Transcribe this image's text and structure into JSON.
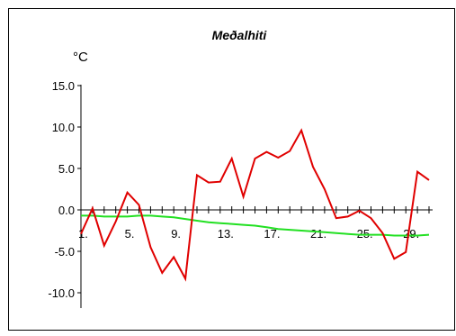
{
  "chart_data": {
    "type": "line",
    "title": "Meðalhiti",
    "ylabel": "°C",
    "xlabel": "",
    "ylim": [
      -11.5,
      15.0
    ],
    "y_ticks": [
      15.0,
      10.0,
      5.0,
      0.0,
      -5.0,
      -10.0
    ],
    "y_tick_labels": [
      "15.0",
      "10.0",
      "5.0",
      "0.0",
      "-5.0",
      "-10.0"
    ],
    "x_range": [
      1,
      31
    ],
    "x_tick_labels": [
      {
        "x": 1,
        "label": "1."
      },
      {
        "x": 5,
        "label": "5."
      },
      {
        "x": 9,
        "label": "9."
      },
      {
        "x": 13,
        "label": "13."
      },
      {
        "x": 17,
        "label": "17."
      },
      {
        "x": 21,
        "label": "21."
      },
      {
        "x": 25,
        "label": "25."
      },
      {
        "x": 29,
        "label": "29."
      }
    ],
    "grid": false,
    "x": [
      1,
      2,
      3,
      4,
      5,
      6,
      7,
      8,
      9,
      10,
      11,
      12,
      13,
      14,
      15,
      16,
      17,
      18,
      19,
      20,
      21,
      22,
      23,
      24,
      25,
      26,
      27,
      28,
      29,
      30,
      31
    ],
    "series": [
      {
        "color": "#e00000",
        "values": [
          -2.9,
          0.2,
          -4.3,
          -1.4,
          2.1,
          0.6,
          -4.5,
          -7.6,
          -5.7,
          -8.3,
          4.2,
          3.3,
          3.4,
          6.2,
          1.6,
          6.2,
          7.0,
          6.3,
          7.1,
          9.6,
          5.2,
          2.5,
          -1.0,
          -0.8,
          -0.1,
          -1.0,
          -2.8,
          -5.9,
          -5.1,
          4.6,
          3.6
        ]
      },
      {
        "color": "#22e022",
        "values": [
          -0.7,
          -0.7,
          -0.8,
          -0.8,
          -0.8,
          -0.7,
          -0.7,
          -0.8,
          -0.9,
          -1.1,
          -1.3,
          -1.5,
          -1.6,
          -1.7,
          -1.8,
          -1.9,
          -2.1,
          -2.3,
          -2.4,
          -2.5,
          -2.6,
          -2.7,
          -2.8,
          -2.9,
          -3.0,
          -3.0,
          -3.0,
          -3.1,
          -3.1,
          -3.1,
          -3.0
        ]
      }
    ]
  }
}
